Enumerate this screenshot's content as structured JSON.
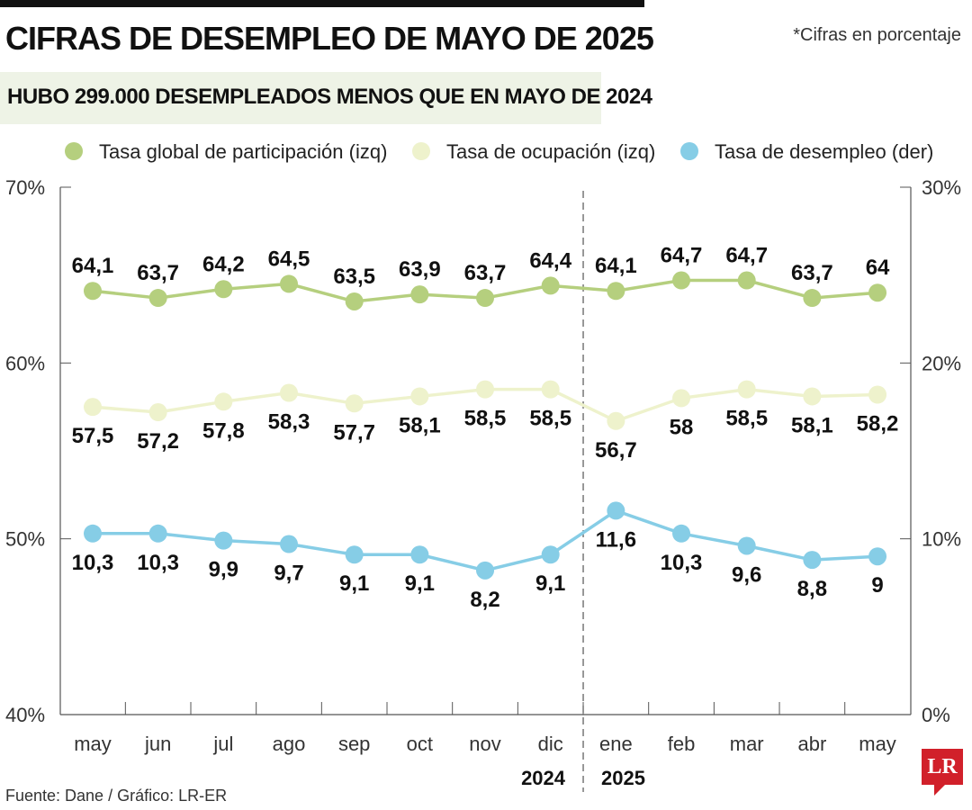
{
  "header": {
    "title": "CIFRAS DE DESEMPLEO DE MAYO DE 2025",
    "note": "*Cifras en porcentaje",
    "subtitle": "HUBO 299.000 DESEMPLEADOS MENOS QUE EN MAYO DE 2024"
  },
  "footer": {
    "source": "Fuente: Dane / Gráfico: LR-ER",
    "logo": "LR"
  },
  "chart_data": {
    "type": "line",
    "categories": [
      "may",
      "jun",
      "jul",
      "ago",
      "sep",
      "oct",
      "nov",
      "dic",
      "ene",
      "feb",
      "mar",
      "abr",
      "may"
    ],
    "year_labels": [
      "2024",
      "2025"
    ],
    "y_left": {
      "ticks": [
        "70%",
        "60%",
        "50%",
        "40%"
      ],
      "range": [
        40,
        70
      ]
    },
    "y_right": {
      "ticks": [
        "30%",
        "20%",
        "10%",
        "0%"
      ],
      "range": [
        0,
        30
      ]
    },
    "series": [
      {
        "name": "Tasa global de participación (izq)",
        "axis": "left",
        "color": "#b5cf7e",
        "values": [
          64.1,
          63.7,
          64.2,
          64.5,
          63.5,
          63.9,
          63.7,
          64.4,
          64.1,
          64.7,
          64.7,
          63.7,
          64
        ],
        "labels": [
          "64,1",
          "63,7",
          "64,2",
          "64,5",
          "63,5",
          "63,9",
          "63,7",
          "64,4",
          "64,1",
          "64,7",
          "64,7",
          "63,7",
          "64"
        ],
        "label_pos": "above"
      },
      {
        "name": "Tasa de ocupación (izq)",
        "axis": "left",
        "color": "#eef2cc",
        "values": [
          57.5,
          57.2,
          57.8,
          58.3,
          57.7,
          58.1,
          58.5,
          58.5,
          56.7,
          58,
          58.5,
          58.1,
          58.2
        ],
        "labels": [
          "57,5",
          "57,2",
          "57,8",
          "58,3",
          "57,7",
          "58,1",
          "58,5",
          "58,5",
          "56,7",
          "58",
          "58,5",
          "58,1",
          "58,2"
        ],
        "label_pos": "below"
      },
      {
        "name": "Tasa de desempleo (der)",
        "axis": "right",
        "color": "#86cde6",
        "values": [
          10.3,
          10.3,
          9.9,
          9.7,
          9.1,
          9.1,
          8.2,
          9.1,
          11.6,
          10.3,
          9.6,
          8.8,
          9
        ],
        "labels": [
          "10,3",
          "10,3",
          "9,9",
          "9,7",
          "9,1",
          "9,1",
          "8,2",
          "9,1",
          "11,6",
          "10,3",
          "9,6",
          "8,8",
          "9"
        ],
        "label_pos": "below"
      }
    ],
    "grid": false,
    "legend": "top"
  }
}
